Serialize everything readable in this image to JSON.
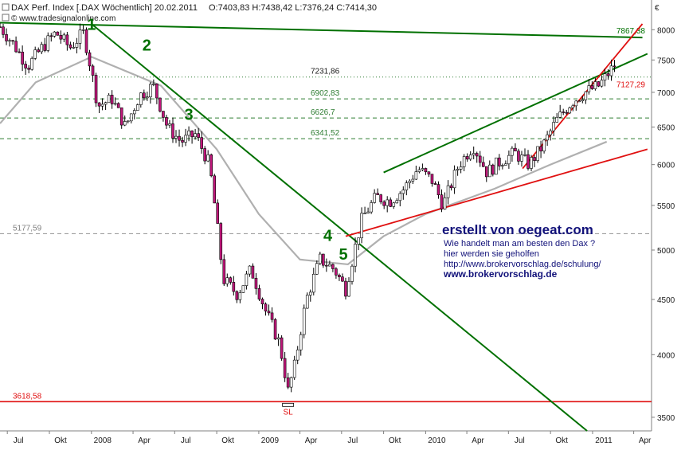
{
  "header": {
    "title": "DAX Perf. Index [.DAX  Wöchentlich] 20.02.2011",
    "ohlc": "O:7403,83 H:7438,42 L:7376,24 C:7414,30",
    "source": "© www.tradesignalonline.com",
    "currency": "€"
  },
  "colors": {
    "candle_up": "#ffffff",
    "candle_down": "#c0167a",
    "wick": "#000000",
    "trend_green": "#007000",
    "support_red": "#e01010",
    "level_dash": "#2e7d32",
    "ma_gray": "#b0b0b0",
    "annotation_blue": "#12127a"
  },
  "chart_data": {
    "type": "candlestick",
    "y_axis": {
      "range": [
        3400,
        8100
      ],
      "scale": "log",
      "ticks": [
        3500,
        4000,
        4500,
        5000,
        5500,
        6000,
        6500,
        7000,
        7500,
        8000
      ]
    },
    "x_axis": {
      "range": [
        "2007-06-15",
        "2011-05-10"
      ],
      "ticks": [
        {
          "label": "Jul",
          "date": "2007-07-01"
        },
        {
          "label": "Okt",
          "date": "2007-10-01"
        },
        {
          "label": "2008",
          "date": "2008-01-01"
        },
        {
          "label": "Apr",
          "date": "2008-04-01"
        },
        {
          "label": "Jul",
          "date": "2008-07-01"
        },
        {
          "label": "Okt",
          "date": "2008-10-01"
        },
        {
          "label": "2009",
          "date": "2009-01-01"
        },
        {
          "label": "Apr",
          "date": "2009-04-01"
        },
        {
          "label": "Jul",
          "date": "2009-07-01"
        },
        {
          "label": "Okt",
          "date": "2009-10-01"
        },
        {
          "label": "2010",
          "date": "2010-01-01"
        },
        {
          "label": "Apr",
          "date": "2010-04-01"
        },
        {
          "label": "Jul",
          "date": "2010-07-01"
        },
        {
          "label": "Okt",
          "date": "2010-10-01"
        },
        {
          "label": "2011",
          "date": "2011-01-01"
        },
        {
          "label": "Apr",
          "date": "2011-04-01"
        }
      ]
    },
    "series": [
      {
        "kind": "weekly-close",
        "points": [
          [
            "2007-06-15",
            8050
          ],
          [
            "2007-07-15",
            7750
          ],
          [
            "2007-08-15",
            7400
          ],
          [
            "2007-09-15",
            7700
          ],
          [
            "2007-10-15",
            7950
          ],
          [
            "2007-11-15",
            7700
          ],
          [
            "2007-12-15",
            7950
          ],
          [
            "2008-01-15",
            6800
          ],
          [
            "2008-02-15",
            6900
          ],
          [
            "2008-03-15",
            6500
          ],
          [
            "2008-04-15",
            6950
          ],
          [
            "2008-05-15",
            7100
          ],
          [
            "2008-06-15",
            6500
          ],
          [
            "2008-07-15",
            6300
          ],
          [
            "2008-08-15",
            6400
          ],
          [
            "2008-09-15",
            6000
          ],
          [
            "2008-10-15",
            4700
          ],
          [
            "2008-11-15",
            4550
          ],
          [
            "2008-12-15",
            4800
          ],
          [
            "2009-01-15",
            4400
          ],
          [
            "2009-02-15",
            4100
          ],
          [
            "2009-03-06",
            3700
          ],
          [
            "2009-03-20",
            3900
          ],
          [
            "2009-04-15",
            4500
          ],
          [
            "2009-05-15",
            4900
          ],
          [
            "2009-06-15",
            4800
          ],
          [
            "2009-07-10",
            4600
          ],
          [
            "2009-08-15",
            5350
          ],
          [
            "2009-09-15",
            5600
          ],
          [
            "2009-10-15",
            5550
          ],
          [
            "2009-11-15",
            5700
          ],
          [
            "2009-12-15",
            5950
          ],
          [
            "2010-01-15",
            5800
          ],
          [
            "2010-02-08",
            5500
          ],
          [
            "2010-03-15",
            6000
          ],
          [
            "2010-04-15",
            6250
          ],
          [
            "2010-05-15",
            5900
          ],
          [
            "2010-06-15",
            6050
          ],
          [
            "2010-07-15",
            6150
          ],
          [
            "2010-08-15",
            6000
          ],
          [
            "2010-09-15",
            6250
          ],
          [
            "2010-10-15",
            6600
          ],
          [
            "2010-11-15",
            6850
          ],
          [
            "2010-12-15",
            7000
          ],
          [
            "2011-01-15",
            7100
          ],
          [
            "2011-02-18",
            7414
          ]
        ]
      },
      {
        "kind": "moving-average",
        "points": [
          [
            "2007-06-15",
            6550
          ],
          [
            "2007-09-01",
            7150
          ],
          [
            "2008-01-01",
            7550
          ],
          [
            "2008-06-01",
            7100
          ],
          [
            "2008-10-01",
            6200
          ],
          [
            "2009-01-01",
            5400
          ],
          [
            "2009-04-01",
            4900
          ],
          [
            "2009-07-15",
            4850
          ],
          [
            "2009-10-01",
            5150
          ],
          [
            "2010-01-01",
            5400
          ],
          [
            "2010-06-01",
            5700
          ],
          [
            "2010-10-01",
            6000
          ],
          [
            "2011-02-01",
            6300
          ]
        ]
      }
    ],
    "horizontal_levels": [
      {
        "value": 7231.86,
        "label": "7231,86",
        "style": "dotted"
      },
      {
        "value": 6902.83,
        "label": "6902,83",
        "style": "dashed"
      },
      {
        "value": 6626.7,
        "label": "6626,7",
        "style": "dashed"
      },
      {
        "value": 6341.52,
        "label": "6341,52",
        "style": "dashed"
      },
      {
        "value": 5177.59,
        "label": "5177,59",
        "style": "dashed"
      },
      {
        "value": 3618.58,
        "label": "3618,58",
        "style": "solid"
      }
    ],
    "trendlines": [
      {
        "color": "green",
        "from": [
          "2007-06-15",
          8120
        ],
        "to": [
          "2011-04-20",
          7867.38
        ],
        "label": "7867,38"
      },
      {
        "color": "green",
        "from": [
          "2008-01-01",
          8100
        ],
        "to": [
          "2010-12-20",
          3400
        ]
      },
      {
        "color": "green",
        "from": [
          "2009-10-01",
          5900
        ],
        "to": [
          "2011-05-01",
          7600
        ]
      },
      {
        "color": "red",
        "from": [
          "2009-07-10",
          5150
        ],
        "to": [
          "2011-05-01",
          6200
        ]
      },
      {
        "color": "red",
        "from": [
          "2010-08-01",
          5950
        ],
        "to": [
          "2011-04-20",
          8100
        ],
        "label": "7127,29"
      }
    ],
    "wave_labels": [
      {
        "label": "1",
        "date": "2008-01-01",
        "value": 8000
      },
      {
        "label": "2",
        "date": "2008-05-01",
        "value": 7650
      },
      {
        "label": "3",
        "date": "2008-08-01",
        "value": 6600
      },
      {
        "label": "4",
        "date": "2009-06-01",
        "value": 5100
      },
      {
        "label": "5",
        "date": "2009-07-05",
        "value": 4900
      }
    ],
    "low_marker": {
      "label": "SL",
      "date": "2009-03-06",
      "value": 3618.58
    }
  },
  "annotations": {
    "main": "erstellt von oegeat.com",
    "line1": "Wie handelt man am besten  den Dax ?",
    "line2": "hier werden sie geholfen",
    "line3": "http://www.brokervorschlag.de/schulung/",
    "line4": "www.brokervorschlag.de"
  }
}
